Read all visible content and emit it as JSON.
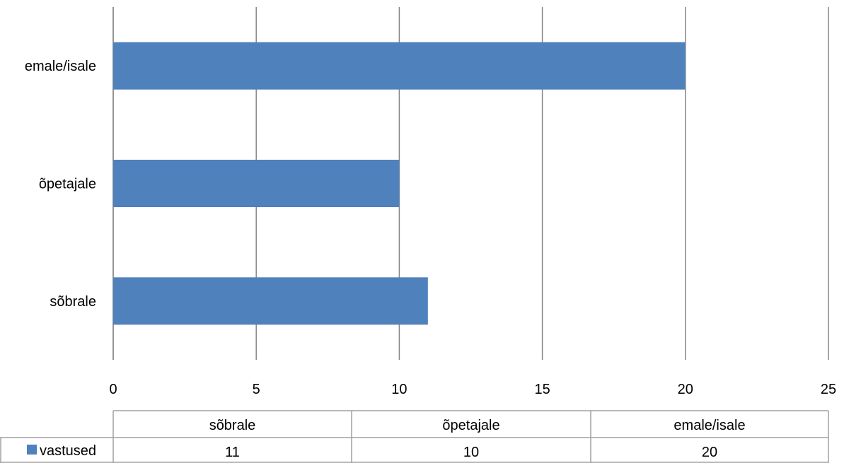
{
  "chart_data": {
    "type": "bar",
    "orientation": "horizontal",
    "categories": [
      "sõbrale",
      "õpetajale",
      "emale/isale"
    ],
    "series": [
      {
        "name": "vastused",
        "values": [
          11,
          10,
          20
        ],
        "color": "#4F81BD"
      }
    ],
    "x_ticks": [
      "0",
      "5",
      "10",
      "15",
      "20",
      "25"
    ],
    "xlim": [
      0,
      25
    ],
    "grid": true,
    "data_table": {
      "headers": [
        "sõbrale",
        "õpetajale",
        "emale/isale"
      ],
      "rows": [
        {
          "legend": "vastused",
          "values": [
            "11",
            "10",
            "20"
          ]
        }
      ]
    }
  }
}
